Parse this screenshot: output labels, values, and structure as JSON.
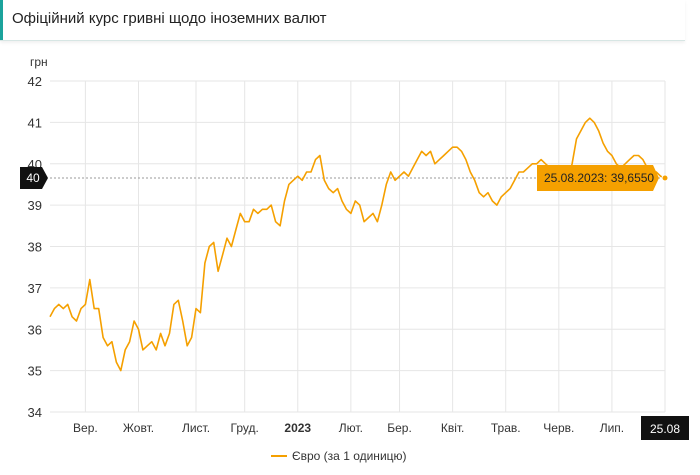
{
  "header": {
    "title": "Офіційний курс гривні щодо іноземних валют"
  },
  "colors": {
    "line": "#f5a000",
    "tooltip_bg": "#f5a000",
    "marker_bg": "#111111",
    "grid": "#e6e6e6",
    "accent": "#1ba39c"
  },
  "chart_data": {
    "type": "line",
    "y_unit_label": "грн",
    "ylim": [
      34,
      42
    ],
    "y_ticks": [
      34,
      35,
      36,
      37,
      38,
      39,
      40,
      41,
      42
    ],
    "x_ticks": [
      {
        "label": "Вер.",
        "index": 8
      },
      {
        "label": "Жовт.",
        "index": 20
      },
      {
        "label": "Лист.",
        "index": 33
      },
      {
        "label": "Груд.",
        "index": 44
      },
      {
        "label": "2023",
        "index": 56
      },
      {
        "label": "Лют.",
        "index": 68
      },
      {
        "label": "Бер.",
        "index": 79
      },
      {
        "label": "Квіт.",
        "index": 91
      },
      {
        "label": "Трав.",
        "index": 103
      },
      {
        "label": "Черв.",
        "index": 115
      },
      {
        "label": "Лип.",
        "index": 127
      },
      {
        "label": "25.08",
        "index": 139,
        "highlight": true
      }
    ],
    "grid": true,
    "legend_position": "bottom-center",
    "crosshair_value": "40",
    "tooltip": "25.08.2023: 39,6550",
    "series": [
      {
        "name": "Євро (за 1 одиницю)",
        "values": [
          36.3,
          36.5,
          36.6,
          36.5,
          36.6,
          36.3,
          36.2,
          36.5,
          36.6,
          37.2,
          36.5,
          36.5,
          35.8,
          35.6,
          35.7,
          35.2,
          35.0,
          35.5,
          35.7,
          36.2,
          36.0,
          35.5,
          35.6,
          35.7,
          35.5,
          35.9,
          35.6,
          35.9,
          36.6,
          36.7,
          36.2,
          35.6,
          35.8,
          36.5,
          36.4,
          37.6,
          38.0,
          38.1,
          37.4,
          37.8,
          38.2,
          38.0,
          38.4,
          38.8,
          38.6,
          38.6,
          38.9,
          38.8,
          38.9,
          38.9,
          39.0,
          38.6,
          38.5,
          39.1,
          39.5,
          39.6,
          39.7,
          39.6,
          39.8,
          39.8,
          40.1,
          40.2,
          39.6,
          39.4,
          39.3,
          39.4,
          39.1,
          38.9,
          38.8,
          39.1,
          39.0,
          38.6,
          38.7,
          38.8,
          38.6,
          39.0,
          39.5,
          39.8,
          39.6,
          39.7,
          39.8,
          39.7,
          39.9,
          40.1,
          40.3,
          40.2,
          40.3,
          40.0,
          40.1,
          40.2,
          40.3,
          40.4,
          40.4,
          40.3,
          40.1,
          39.8,
          39.6,
          39.3,
          39.2,
          39.3,
          39.1,
          39.0,
          39.2,
          39.3,
          39.4,
          39.6,
          39.8,
          39.8,
          39.9,
          40.0,
          40.0,
          40.1,
          40.0,
          39.9,
          39.8,
          39.6,
          39.5,
          39.6,
          40.0,
          40.6,
          40.8,
          41.0,
          41.1,
          41.0,
          40.8,
          40.5,
          40.3,
          40.2,
          40.0,
          39.9,
          40.0,
          40.1,
          40.2,
          40.2,
          40.1,
          39.9,
          39.7,
          39.8,
          39.7,
          39.655
        ]
      }
    ]
  }
}
